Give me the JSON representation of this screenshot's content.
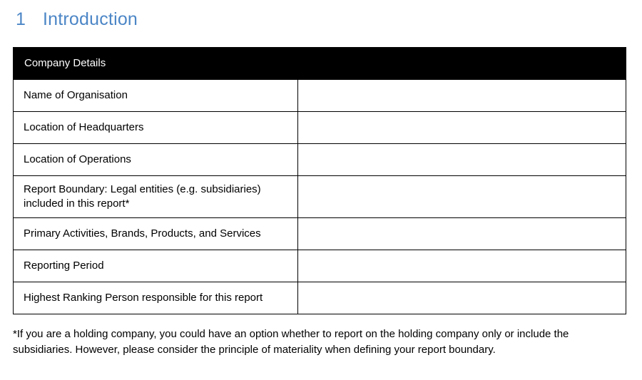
{
  "heading": {
    "number": "1",
    "title": "Introduction",
    "color": "#4C86C6"
  },
  "table": {
    "header": "Company Details",
    "header_bg": "#000000",
    "header_text_color": "#FFFFFF",
    "border_color": "#000000",
    "rows": [
      {
        "label": "Name of Organisation",
        "value": ""
      },
      {
        "label": "Location of Headquarters",
        "value": ""
      },
      {
        "label": "Location of Operations",
        "value": ""
      },
      {
        "label": "Report Boundary: Legal entities (e.g. subsidiaries) included in this report*",
        "value": ""
      },
      {
        "label": "Primary Activities, Brands, Products, and Services",
        "value": ""
      },
      {
        "label": "Reporting Period",
        "value": ""
      },
      {
        "label": "Highest Ranking Person responsible for this report",
        "value": ""
      }
    ]
  },
  "footnote": "*If you are a holding company, you could have an option whether to report on the holding company only or include the subsidiaries. However, please consider the principle of materiality when defining your report boundary."
}
